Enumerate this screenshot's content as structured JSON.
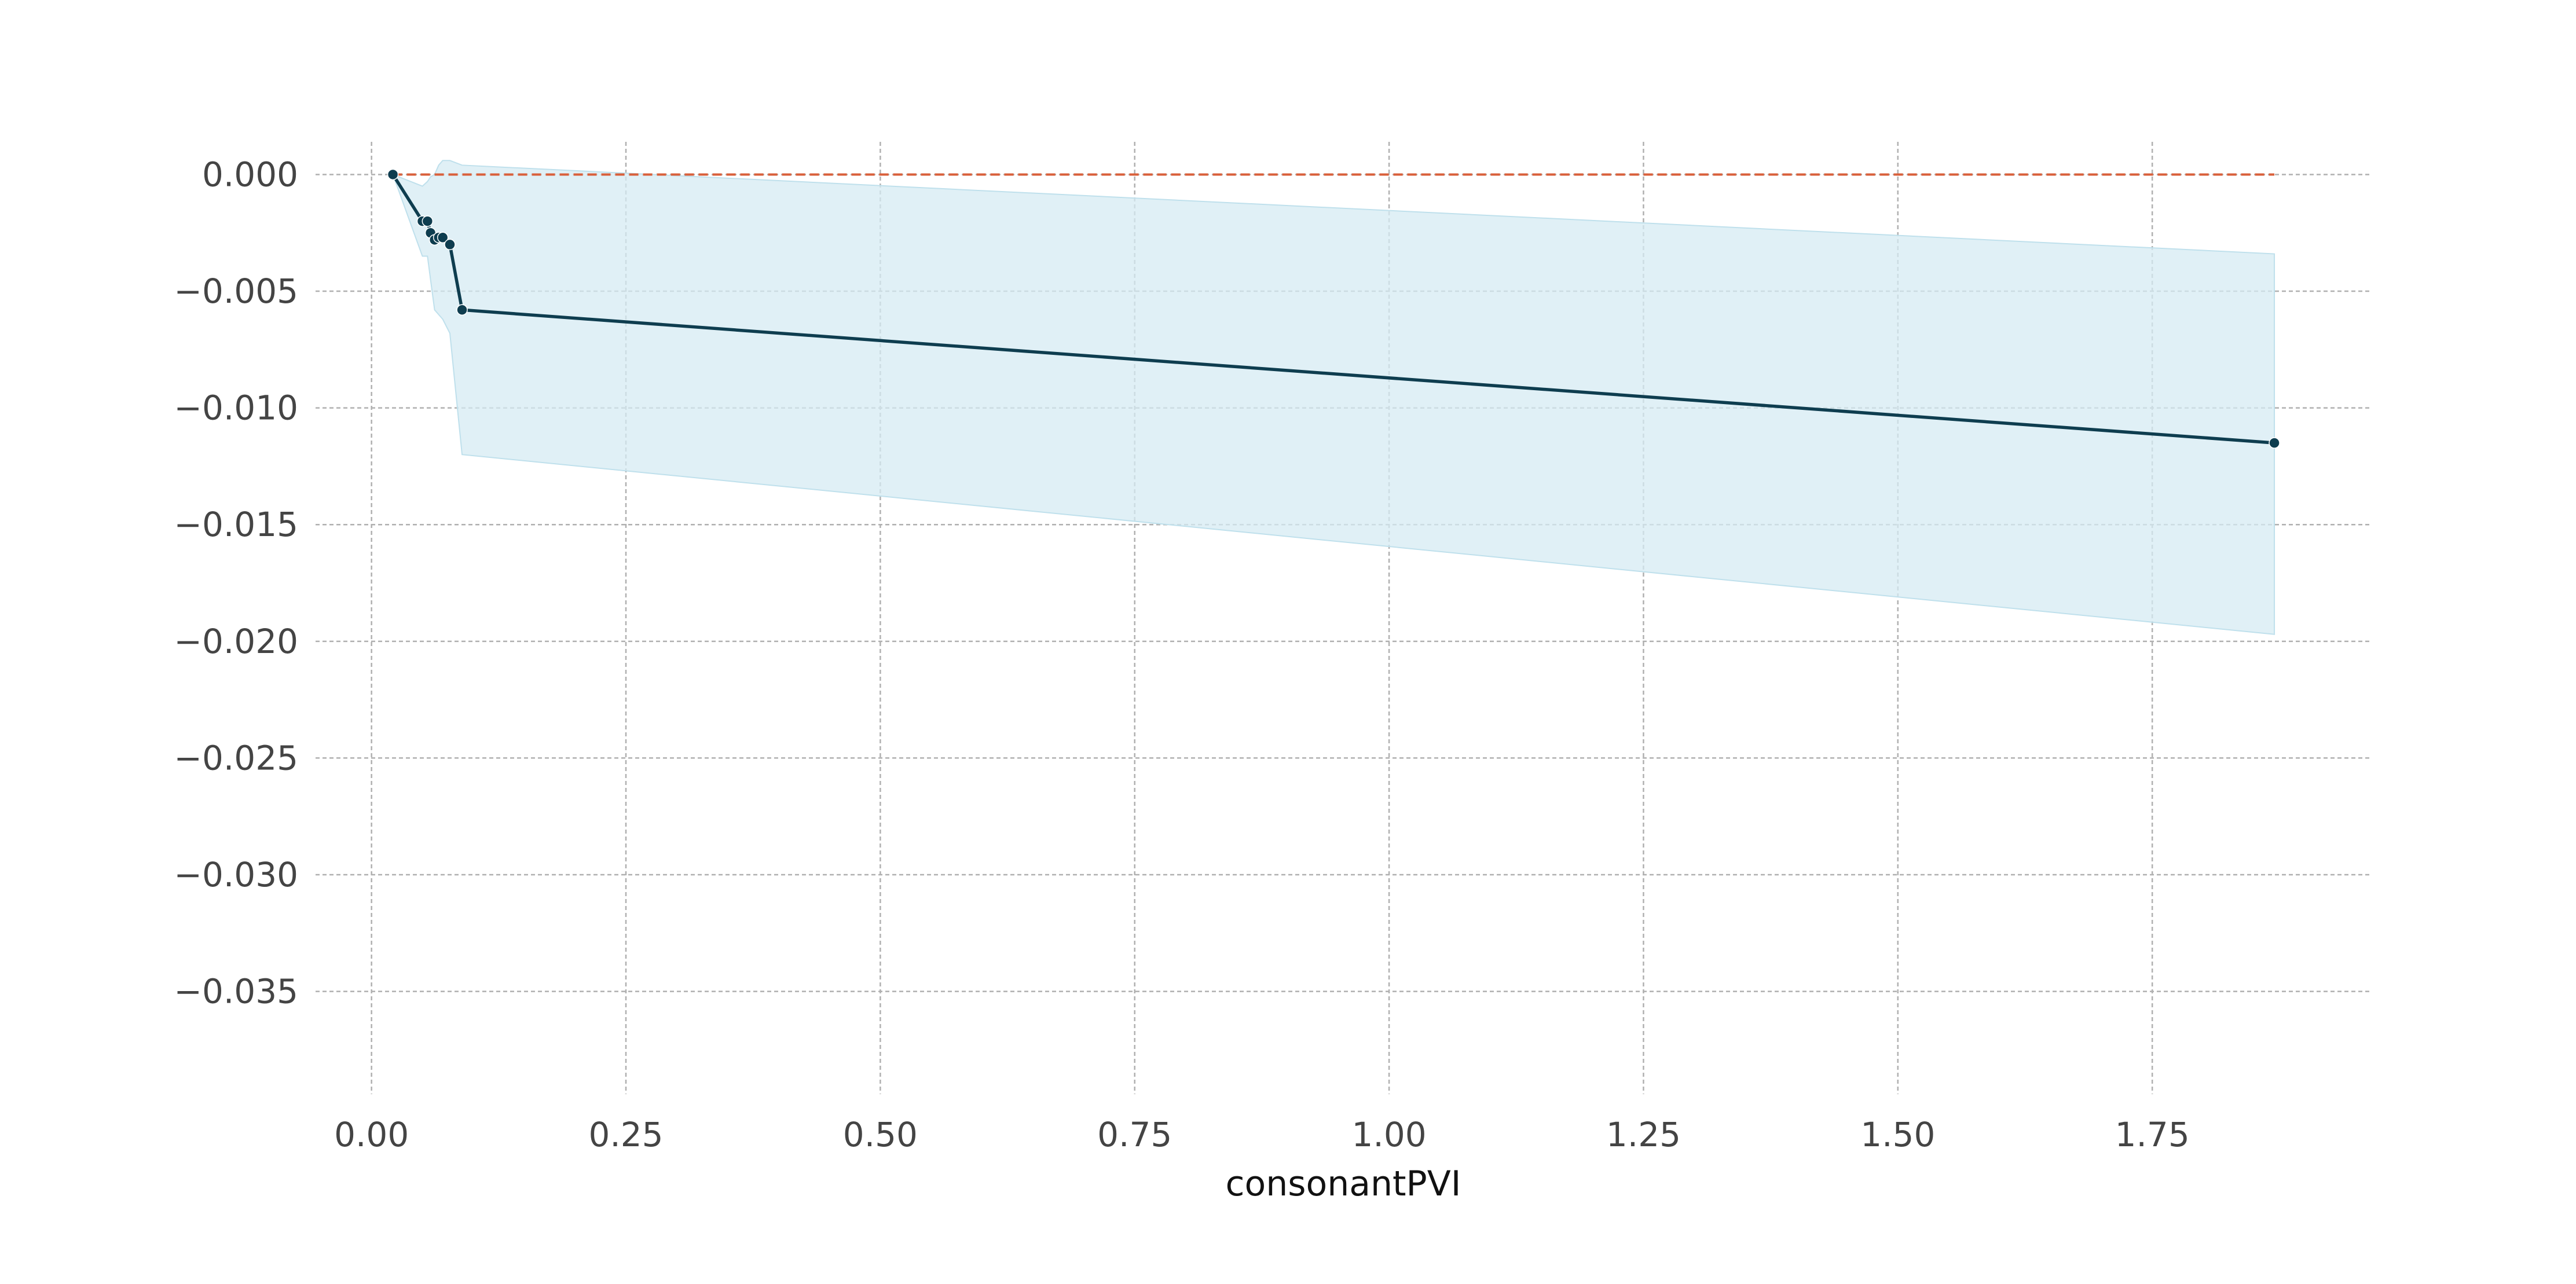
{
  "chart_data": {
    "type": "line",
    "title": "",
    "xlabel": "consonantPVI",
    "ylabel": "",
    "xlim": [
      -0.055,
      1.965
    ],
    "ylim": [
      -0.0394,
      0.0014
    ],
    "x_ticks": [
      0.0,
      0.25,
      0.5,
      0.75,
      1.0,
      1.25,
      1.5,
      1.75
    ],
    "x_tick_labels": [
      "0.00",
      "0.25",
      "0.50",
      "0.75",
      "1.00",
      "1.25",
      "1.50",
      "1.75"
    ],
    "y_ticks": [
      0.0,
      -0.005,
      -0.01,
      -0.015,
      -0.02,
      -0.025,
      -0.03,
      -0.035
    ],
    "y_tick_labels": [
      "0.000",
      "−0.005",
      "−0.010",
      "−0.015",
      "−0.020",
      "−0.025",
      "−0.030",
      "−0.035"
    ],
    "grid": true,
    "series": [
      {
        "kind": "line-with-markers",
        "color": "#0e3d4f",
        "x": [
          0.021,
          0.05,
          0.055,
          0.058,
          0.062,
          0.066,
          0.07,
          0.077,
          0.089,
          1.87
        ],
        "y": [
          0.0,
          -0.002,
          -0.002,
          -0.0025,
          -0.0028,
          -0.0027,
          -0.0027,
          -0.003,
          -0.0058,
          -0.0115
        ]
      }
    ],
    "confidence_band": {
      "color": "#d5ebf3",
      "x": [
        0.021,
        0.05,
        0.055,
        0.058,
        0.062,
        0.066,
        0.07,
        0.077,
        0.089,
        1.87
      ],
      "upper": [
        0.0,
        -0.0005,
        -0.0003,
        -0.0001,
        0.0,
        0.0004,
        0.0006,
        0.0006,
        0.0004,
        -0.0034
      ],
      "lower": [
        0.0,
        -0.0035,
        -0.0035,
        -0.0045,
        -0.0058,
        -0.006,
        -0.0062,
        -0.0068,
        -0.012,
        -0.0197
      ]
    },
    "reference_line": {
      "y": 0.0,
      "x_range": [
        0.021,
        1.87
      ],
      "color": "#d9603b",
      "style": "dashed"
    }
  }
}
